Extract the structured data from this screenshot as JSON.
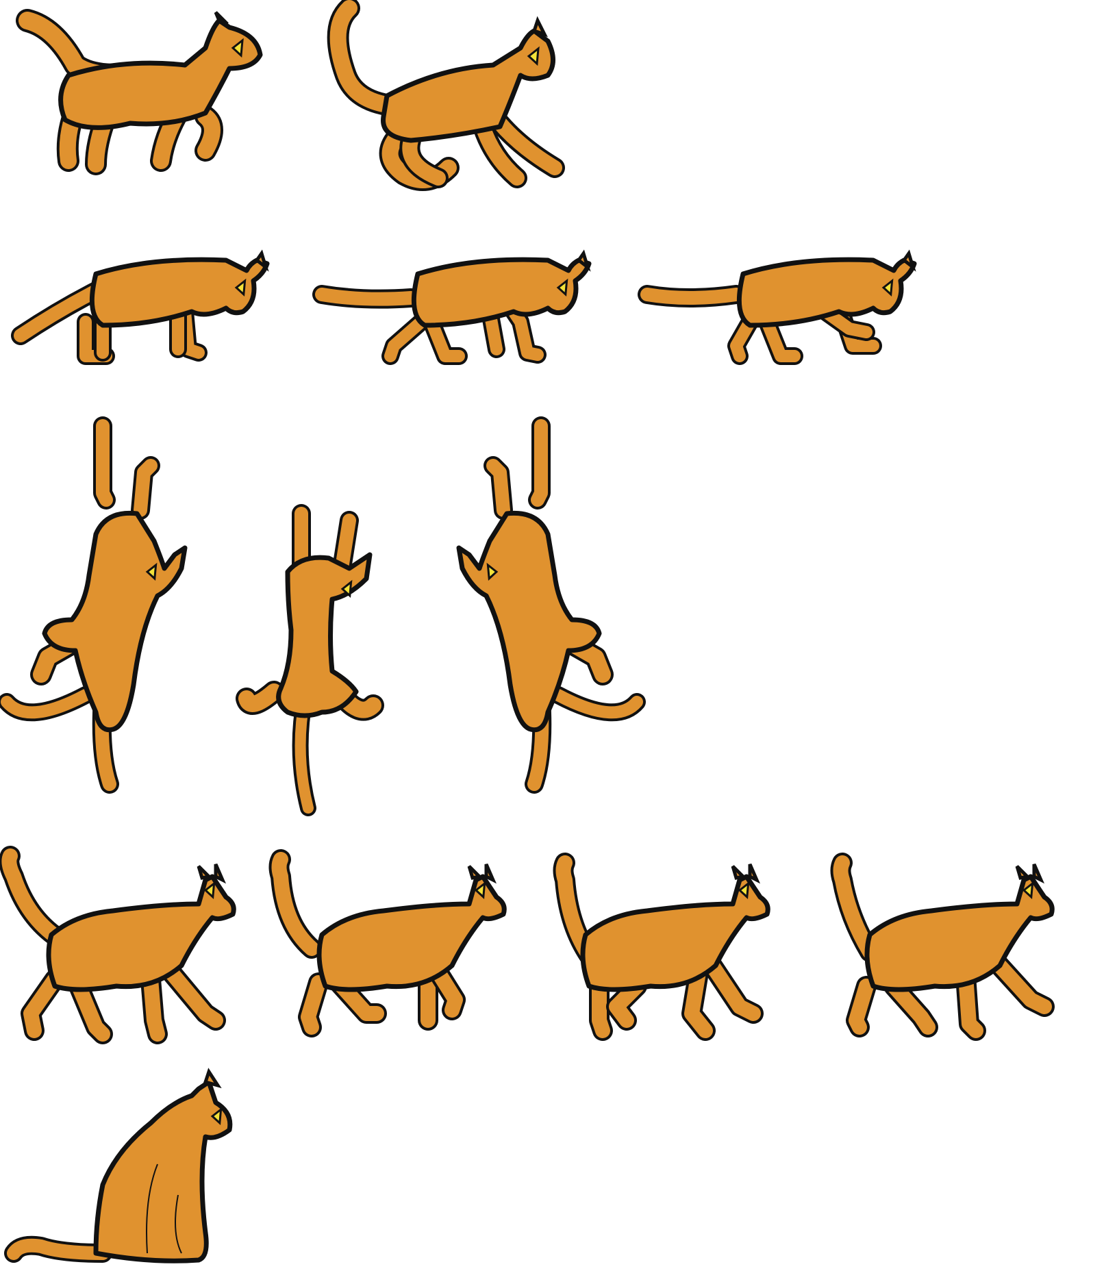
{
  "sheet": {
    "background": "#ffffff",
    "fur_color": "#e0922f",
    "outline_color": "#111111",
    "eye_color": "#f3e23a",
    "rows": [
      {
        "name": "jump",
        "frames": 2
      },
      {
        "name": "crouch-walk",
        "frames": 3
      },
      {
        "name": "climb",
        "frames": 3
      },
      {
        "name": "walk",
        "frames": 4
      },
      {
        "name": "sit",
        "frames": 1
      }
    ]
  }
}
